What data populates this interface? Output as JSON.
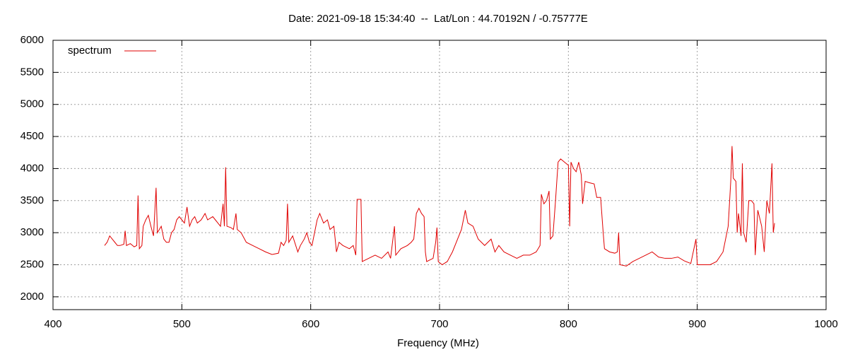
{
  "chart_data": {
    "type": "line",
    "title": "Date: 2021-09-18 15:34:40  --  Lat/Lon : 44.70192N / -0.75777E",
    "x_label": "Frequency (MHz)",
    "xlim": [
      400,
      1000
    ],
    "xticks": [
      400,
      500,
      600,
      700,
      800,
      900,
      1000
    ],
    "ylim": [
      1800,
      6000
    ],
    "yticks": [
      2000,
      2500,
      3000,
      3500,
      4000,
      4500,
      5000,
      5500,
      6000
    ],
    "grid": true,
    "legend": "top-left",
    "series": [
      {
        "name": "spectrum",
        "color": "#e00000",
        "x": [
          440,
          442,
          444,
          446,
          448,
          450,
          452,
          455,
          456,
          457,
          460,
          463,
          465,
          466,
          467,
          469,
          470,
          472,
          474,
          476,
          478,
          480,
          481,
          484,
          486,
          488,
          490,
          492,
          494,
          496,
          498,
          500,
          502,
          504,
          506,
          508,
          510,
          512,
          515,
          518,
          520,
          524,
          526,
          528,
          530,
          532,
          533,
          534,
          535,
          538,
          540,
          542,
          543,
          546,
          550,
          555,
          560,
          565,
          570,
          575,
          577,
          579,
          581,
          582,
          583,
          586,
          590,
          592,
          595,
          597,
          599,
          601,
          603,
          605,
          607,
          610,
          613,
          615,
          618,
          620,
          622,
          625,
          630,
          633,
          635,
          636,
          639,
          640,
          645,
          650,
          655,
          660,
          662,
          665,
          666,
          670,
          675,
          678,
          680,
          682,
          684,
          686,
          688,
          689,
          690,
          695,
          697,
          698,
          699,
          702,
          706,
          710,
          714,
          717,
          720,
          722,
          726,
          730,
          735,
          740,
          743,
          746,
          750,
          755,
          760,
          765,
          770,
          775,
          778,
          779,
          781,
          783,
          785,
          786,
          788,
          790,
          792,
          794,
          797,
          800,
          801,
          802,
          804,
          806,
          808,
          810,
          811,
          813,
          816,
          820,
          822,
          825,
          827,
          828,
          832,
          836,
          838,
          839,
          840,
          845,
          850,
          855,
          860,
          865,
          870,
          875,
          880,
          885,
          890,
          895,
          899,
          900,
          905,
          910,
          915,
          920,
          924,
          926,
          927,
          928,
          930,
          931,
          932,
          934,
          935,
          936,
          938,
          940,
          942,
          944,
          945,
          947,
          950,
          952,
          954,
          956,
          958,
          959,
          960
        ],
        "values": [
          2800,
          2850,
          2950,
          2900,
          2850,
          2800,
          2800,
          2820,
          3030,
          2800,
          2830,
          2780,
          2800,
          3580,
          2750,
          2800,
          3100,
          3200,
          3270,
          3100,
          2950,
          3700,
          3000,
          3100,
          2900,
          2850,
          2850,
          3000,
          3050,
          3200,
          3250,
          3200,
          3150,
          3400,
          3100,
          3200,
          3250,
          3150,
          3200,
          3300,
          3200,
          3250,
          3200,
          3150,
          3100,
          3450,
          3100,
          4020,
          3100,
          3080,
          3050,
          3300,
          3050,
          3000,
          2850,
          2800,
          2750,
          2700,
          2660,
          2680,
          2850,
          2800,
          2880,
          3450,
          2850,
          2950,
          2700,
          2800,
          2900,
          3000,
          2850,
          2800,
          3000,
          3200,
          3300,
          3150,
          3200,
          3050,
          3100,
          2700,
          2850,
          2800,
          2750,
          2800,
          2650,
          3520,
          3520,
          2550,
          2600,
          2650,
          2600,
          2700,
          2600,
          3100,
          2650,
          2750,
          2800,
          2850,
          2900,
          3300,
          3380,
          3300,
          3250,
          2700,
          2550,
          2600,
          2850,
          3080,
          2550,
          2500,
          2550,
          2700,
          2900,
          3050,
          3350,
          3150,
          3100,
          2900,
          2800,
          2900,
          2700,
          2800,
          2700,
          2650,
          2600,
          2650,
          2650,
          2700,
          2800,
          3600,
          3450,
          3500,
          3650,
          2900,
          2950,
          3500,
          4100,
          4150,
          4100,
          4050,
          3100,
          4100,
          4000,
          3950,
          4100,
          3900,
          3450,
          3800,
          3780,
          3760,
          3550,
          3550,
          3000,
          2750,
          2700,
          2680,
          2700,
          3000,
          2500,
          2480,
          2550,
          2600,
          2650,
          2700,
          2620,
          2600,
          2600,
          2620,
          2560,
          2520,
          2900,
          2500,
          2500,
          2500,
          2550,
          2700,
          3100,
          3800,
          4350,
          3850,
          3800,
          3000,
          3300,
          2950,
          4080,
          3000,
          2850,
          3500,
          3500,
          3450,
          2650,
          3350,
          3100,
          2700,
          3500,
          3300,
          4080,
          3000,
          3150
        ]
      }
    ]
  }
}
